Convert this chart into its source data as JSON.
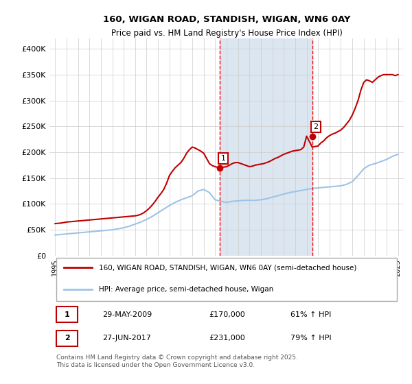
{
  "title": "160, WIGAN ROAD, STANDISH, WIGAN, WN6 0AY",
  "subtitle": "Price paid vs. HM Land Registry's House Price Index (HPI)",
  "legend_line1": "160, WIGAN ROAD, STANDISH, WIGAN, WN6 0AY (semi-detached house)",
  "legend_line2": "HPI: Average price, semi-detached house, Wigan",
  "footnote": "Contains HM Land Registry data © Crown copyright and database right 2025.\nThis data is licensed under the Open Government Licence v3.0.",
  "marker1_label": "1",
  "marker1_date": "29-MAY-2009",
  "marker1_price": "£170,000",
  "marker1_hpi": "61% ↑ HPI",
  "marker1_x": 2009.41,
  "marker1_y": 170000,
  "marker2_label": "2",
  "marker2_date": "27-JUN-2017",
  "marker2_price": "£231,000",
  "marker2_hpi": "79% ↑ HPI",
  "marker2_x": 2017.49,
  "marker2_y": 231000,
  "vline1_x": 2009.41,
  "vline2_x": 2017.49,
  "shade_xmin": 2009.41,
  "shade_xmax": 2017.49,
  "red_line_color": "#c00000",
  "blue_line_color": "#9dc3e6",
  "vline_color": "#ff0000",
  "shade_color": "#dce6f1",
  "background_color": "#ffffff",
  "ylim": [
    0,
    420000
  ],
  "xlim": [
    1994.5,
    2025.5
  ],
  "yticks": [
    0,
    50000,
    100000,
    150000,
    200000,
    250000,
    300000,
    350000,
    400000
  ],
  "ytick_labels": [
    "£0",
    "£50K",
    "£100K",
    "£150K",
    "£200K",
    "£250K",
    "£300K",
    "£350K",
    "£400K"
  ],
  "xticks": [
    1995,
    1996,
    1997,
    1998,
    1999,
    2000,
    2001,
    2002,
    2003,
    2004,
    2005,
    2006,
    2007,
    2008,
    2009,
    2010,
    2011,
    2012,
    2013,
    2014,
    2015,
    2016,
    2017,
    2018,
    2019,
    2020,
    2021,
    2022,
    2023,
    2024,
    2025
  ],
  "red_x": [
    1995.0,
    1995.5,
    1996.0,
    1996.5,
    1997.0,
    1997.25,
    1997.5,
    1997.75,
    1998.0,
    1998.25,
    1998.5,
    1998.75,
    1999.0,
    1999.25,
    1999.5,
    1999.75,
    2000.0,
    2000.25,
    2000.5,
    2000.75,
    2001.0,
    2001.25,
    2001.5,
    2001.75,
    2002.0,
    2002.25,
    2002.5,
    2002.75,
    2003.0,
    2003.25,
    2003.5,
    2003.75,
    2004.0,
    2004.25,
    2004.5,
    2004.75,
    2005.0,
    2005.25,
    2005.5,
    2005.75,
    2006.0,
    2006.25,
    2006.5,
    2006.75,
    2007.0,
    2007.25,
    2007.5,
    2007.75,
    2008.0,
    2008.25,
    2008.5,
    2008.75,
    2009.0,
    2009.41,
    2010.0,
    2010.25,
    2010.5,
    2010.75,
    2011.0,
    2011.25,
    2011.5,
    2011.75,
    2012.0,
    2012.25,
    2012.5,
    2012.75,
    2013.0,
    2013.25,
    2013.5,
    2013.75,
    2014.0,
    2014.25,
    2014.5,
    2014.75,
    2015.0,
    2015.25,
    2015.5,
    2015.75,
    2016.0,
    2016.25,
    2016.5,
    2016.75,
    2017.0,
    2017.49,
    2018.0,
    2018.25,
    2018.5,
    2018.75,
    2019.0,
    2019.25,
    2019.5,
    2019.75,
    2020.0,
    2020.25,
    2020.5,
    2020.75,
    2021.0,
    2021.25,
    2021.5,
    2021.75,
    2022.0,
    2022.25,
    2022.5,
    2022.75,
    2023.0,
    2023.25,
    2023.5,
    2023.75,
    2024.0,
    2024.25,
    2024.5,
    2024.75,
    2025.0
  ],
  "red_y": [
    62000,
    63000,
    65000,
    66000,
    67000,
    67500,
    68000,
    68500,
    69000,
    69500,
    70000,
    70500,
    71000,
    71500,
    72000,
    72500,
    73000,
    73500,
    74000,
    74500,
    75000,
    75500,
    76000,
    76500,
    77000,
    78000,
    80000,
    83000,
    87000,
    92000,
    98000,
    105000,
    113000,
    120000,
    128000,
    140000,
    155000,
    163000,
    170000,
    175000,
    180000,
    188000,
    198000,
    205000,
    210000,
    208000,
    205000,
    202000,
    198000,
    188000,
    178000,
    174000,
    172000,
    170000,
    172000,
    175000,
    178000,
    180000,
    180000,
    178000,
    176000,
    174000,
    172000,
    173000,
    175000,
    176000,
    177000,
    178000,
    180000,
    182000,
    185000,
    188000,
    190000,
    193000,
    196000,
    198000,
    200000,
    202000,
    203000,
    204000,
    205000,
    210000,
    231000,
    210000,
    212000,
    218000,
    222000,
    228000,
    232000,
    235000,
    237000,
    240000,
    243000,
    248000,
    255000,
    262000,
    272000,
    285000,
    300000,
    320000,
    335000,
    340000,
    338000,
    335000,
    340000,
    345000,
    348000,
    350000,
    350000,
    350000,
    350000,
    348000,
    350000
  ],
  "blue_x": [
    1995.0,
    1995.5,
    1996.0,
    1996.5,
    1997.0,
    1997.5,
    1998.0,
    1998.5,
    1999.0,
    1999.5,
    2000.0,
    2000.5,
    2001.0,
    2001.5,
    2002.0,
    2002.5,
    2003.0,
    2003.5,
    2004.0,
    2004.5,
    2005.0,
    2005.5,
    2006.0,
    2006.5,
    2007.0,
    2007.5,
    2008.0,
    2008.5,
    2009.0,
    2009.5,
    2010.0,
    2010.5,
    2011.0,
    2011.5,
    2012.0,
    2012.5,
    2013.0,
    2013.5,
    2014.0,
    2014.5,
    2015.0,
    2015.5,
    2016.0,
    2016.5,
    2017.0,
    2017.5,
    2018.0,
    2018.5,
    2019.0,
    2019.5,
    2020.0,
    2020.5,
    2021.0,
    2021.5,
    2022.0,
    2022.5,
    2023.0,
    2023.5,
    2024.0,
    2024.5,
    2025.0
  ],
  "blue_y": [
    40000,
    41000,
    42000,
    43000,
    44000,
    45000,
    46000,
    47000,
    48000,
    49000,
    50000,
    52000,
    54000,
    57000,
    61000,
    65000,
    70000,
    76000,
    83000,
    90000,
    97000,
    103000,
    108000,
    112000,
    116000,
    125000,
    128000,
    122000,
    108000,
    105000,
    103000,
    105000,
    106000,
    107000,
    107000,
    107000,
    108000,
    110000,
    113000,
    116000,
    119000,
    122000,
    124000,
    126000,
    128000,
    130000,
    131000,
    132000,
    133000,
    134000,
    135000,
    138000,
    143000,
    155000,
    168000,
    175000,
    178000,
    182000,
    186000,
    192000,
    196000
  ]
}
